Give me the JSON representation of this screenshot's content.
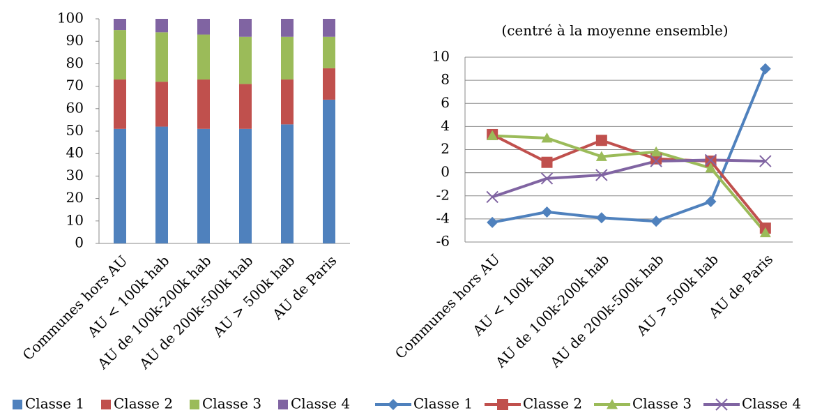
{
  "chart_data": [
    {
      "type": "bar",
      "stacked": true,
      "categories": [
        "Communes hors AU",
        "AU < 100k hab",
        "AU de 100k-200k hab",
        "AU de 200k-500k hab",
        "AU > 500k hab",
        "AU de Paris"
      ],
      "series": [
        {
          "name": "Classe 1",
          "color": "#4f81bd",
          "values": [
            51,
            52,
            51,
            51,
            53,
            64
          ]
        },
        {
          "name": "Classe 2",
          "color": "#c0504d",
          "values": [
            22,
            20,
            22,
            20,
            20,
            14
          ]
        },
        {
          "name": "Classe 3",
          "color": "#9bbb59",
          "values": [
            22,
            22,
            20,
            21,
            19,
            14
          ]
        },
        {
          "name": "Classe 4",
          "color": "#8064a2",
          "values": [
            5,
            6,
            7,
            8,
            8,
            8
          ]
        }
      ],
      "ylim": [
        0,
        100
      ],
      "yticks": [
        0,
        10,
        20,
        30,
        40,
        50,
        60,
        70,
        80,
        90,
        100
      ],
      "grid": false
    },
    {
      "type": "line",
      "title": "(centré à la moyenne ensemble)",
      "categories": [
        "Communes hors AU",
        "AU < 100k hab",
        "AU de 100k-200k hab",
        "AU de 200k-500k hab",
        "AU > 500k hab",
        "AU de Paris"
      ],
      "series": [
        {
          "name": "Classe 1",
          "color": "#4f81bd",
          "marker": "diamond",
          "values": [
            -4.3,
            -3.4,
            -3.9,
            -4.2,
            -2.5,
            9.0
          ]
        },
        {
          "name": "Classe 2",
          "color": "#c0504d",
          "marker": "square",
          "values": [
            3.3,
            0.9,
            2.8,
            1.2,
            1.0,
            -4.8
          ]
        },
        {
          "name": "Classe 3",
          "color": "#9bbb59",
          "marker": "triangle",
          "values": [
            3.2,
            3.0,
            1.4,
            1.8,
            0.4,
            -5.2
          ]
        },
        {
          "name": "Classe 4",
          "color": "#8064a2",
          "marker": "x",
          "values": [
            -2.1,
            -0.5,
            -0.2,
            1.0,
            1.1,
            1.0
          ]
        }
      ],
      "ylim": [
        -6,
        10
      ],
      "yticks": [
        -6,
        -4,
        -2,
        0,
        2,
        4,
        6,
        8,
        10
      ],
      "grid": true
    }
  ]
}
